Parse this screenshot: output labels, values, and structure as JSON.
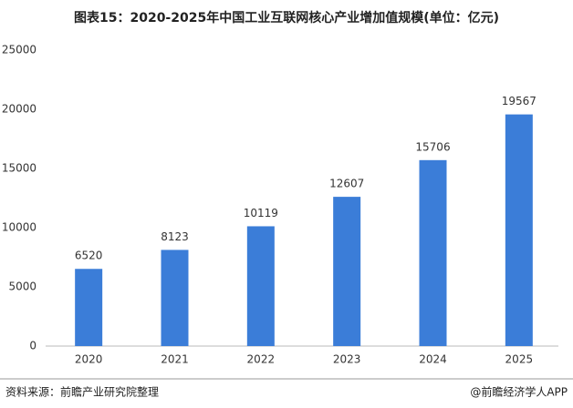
{
  "chart_data": {
    "type": "bar",
    "title": "图表15：2020-2025年中国工业互联网核心产业增加值规模(单位：亿元)",
    "categories": [
      "2020",
      "2021",
      "2022",
      "2023",
      "2024",
      "2025"
    ],
    "values": [
      6520,
      8123,
      10119,
      12607,
      15706,
      19567
    ],
    "color": "#3b7dd8",
    "ylim": [
      0,
      25000
    ],
    "yticks": [
      0,
      5000,
      10000,
      15000,
      20000,
      25000
    ],
    "grid": false,
    "source": "资料来源：前瞻产业研究院整理",
    "credit": "@前瞻经济学人APP"
  }
}
